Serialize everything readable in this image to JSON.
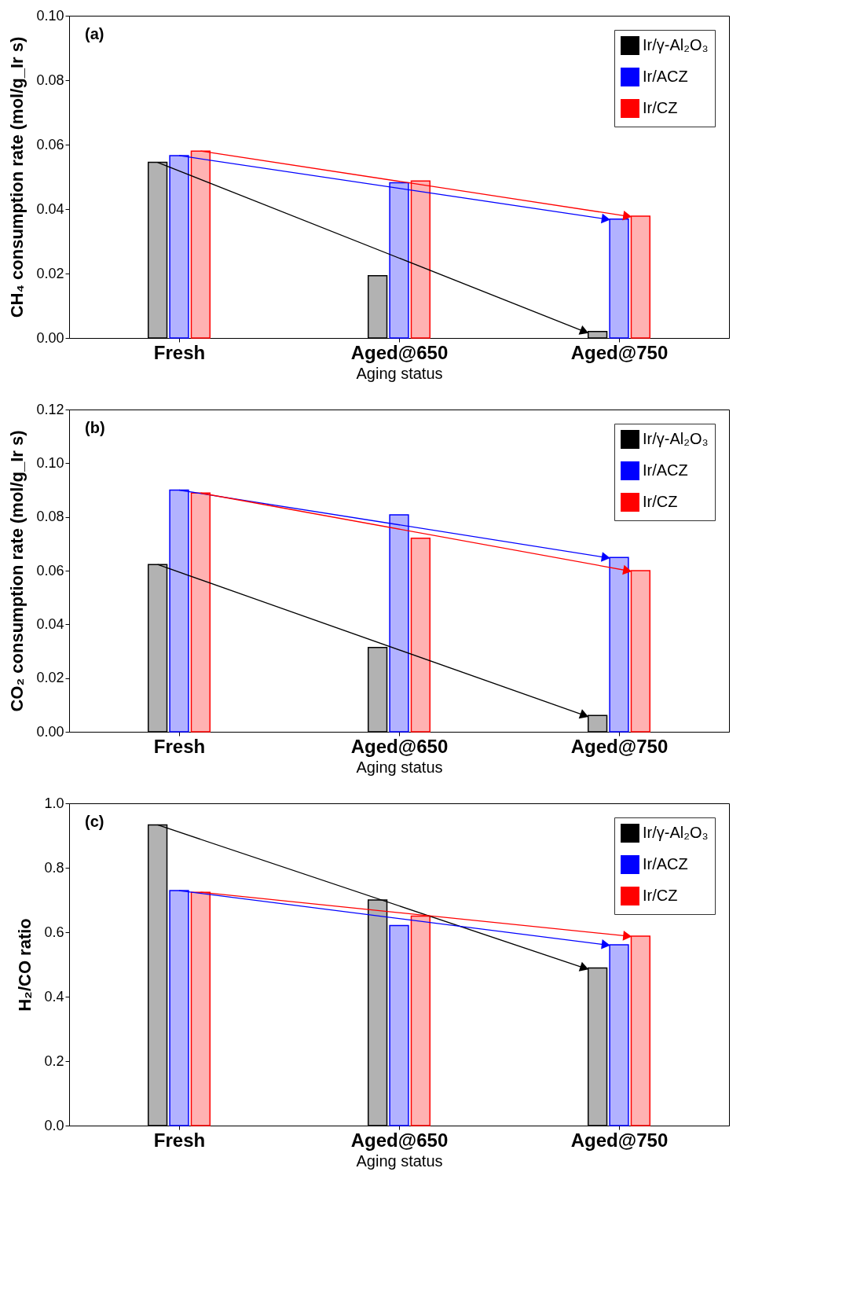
{
  "chart_data": [
    {
      "type": "bar",
      "categories": [
        "Fresh",
        "Aged@650",
        "Aged@750"
      ],
      "xlabel": "Aging status",
      "ylabel": "CH₄ consumption rate (mol/g_Ir s)",
      "annotations": [
        "(a)"
      ],
      "legend": "top right",
      "grid": false,
      "ylim": [
        0,
        0.1
      ],
      "yticks": [
        {
          "value": 0,
          "label": "0.00"
        },
        {
          "value": 0.02,
          "label": "0.02"
        },
        {
          "value": 0.04,
          "label": "0.04"
        },
        {
          "value": 0.06,
          "label": "0.06"
        },
        {
          "value": 0.08,
          "label": "0.08"
        },
        {
          "value": 0.1,
          "label": "0.10"
        }
      ],
      "series": [
        {
          "name": "Ir/γ-Al₂O₃",
          "color": "#000000",
          "values": [
            0.0545,
            0.0193,
            0.002
          ]
        },
        {
          "name": "Ir/ACZ",
          "color": "#0000ff",
          "values": [
            0.0566,
            0.0482,
            0.0369
          ]
        },
        {
          "name": "Ir/CZ",
          "color": "#ff0000",
          "values": [
            0.058,
            0.0487,
            0.0378
          ]
        }
      ]
    },
    {
      "type": "bar",
      "categories": [
        "Fresh",
        "Aged@650",
        "Aged@750"
      ],
      "xlabel": "Aging status",
      "ylabel": "CO₂ consumption rate (mol/g_Ir s)",
      "annotations": [
        "(b)"
      ],
      "legend": "top right",
      "grid": false,
      "ylim": [
        0,
        0.12
      ],
      "yticks": [
        {
          "value": 0,
          "label": "0.00"
        },
        {
          "value": 0.02,
          "label": "0.02"
        },
        {
          "value": 0.04,
          "label": "0.04"
        },
        {
          "value": 0.06,
          "label": "0.06"
        },
        {
          "value": 0.08,
          "label": "0.08"
        },
        {
          "value": 0.1,
          "label": "0.10"
        },
        {
          "value": 0.12,
          "label": "0.12"
        }
      ],
      "series": [
        {
          "name": "Ir/γ-Al₂O₃",
          "color": "#000000",
          "values": [
            0.0623,
            0.0314,
            0.0061
          ]
        },
        {
          "name": "Ir/ACZ",
          "color": "#0000ff",
          "values": [
            0.09,
            0.0808,
            0.0649
          ]
        },
        {
          "name": "Ir/CZ",
          "color": "#ff0000",
          "values": [
            0.0889,
            0.0721,
            0.06
          ]
        }
      ]
    },
    {
      "type": "bar",
      "categories": [
        "Fresh",
        "Aged@650",
        "Aged@750"
      ],
      "xlabel": "Aging status",
      "ylabel": "H₂/CO ratio",
      "annotations": [
        "(c)"
      ],
      "legend": "top right",
      "grid": false,
      "ylim": [
        0,
        1.0
      ],
      "yticks": [
        {
          "value": 0,
          "label": "0.0"
        },
        {
          "value": 0.2,
          "label": "0.2"
        },
        {
          "value": 0.4,
          "label": "0.4"
        },
        {
          "value": 0.6,
          "label": "0.6"
        },
        {
          "value": 0.8,
          "label": "0.8"
        },
        {
          "value": 1.0,
          "label": "1.0"
        }
      ],
      "series": [
        {
          "name": "Ir/γ-Al₂O₃",
          "color": "#000000",
          "values": [
            0.933,
            0.7,
            0.489
          ]
        },
        {
          "name": "Ir/ACZ",
          "color": "#0000ff",
          "values": [
            0.729,
            0.621,
            0.561
          ]
        },
        {
          "name": "Ir/CZ",
          "color": "#ff0000",
          "values": [
            0.724,
            0.65,
            0.588
          ]
        }
      ]
    }
  ]
}
